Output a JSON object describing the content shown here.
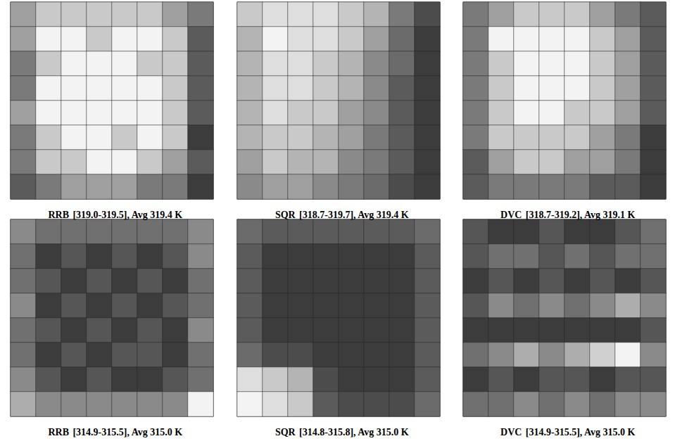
{
  "chart_data": [
    {
      "type": "heatmap",
      "title": "RRB",
      "subtitle": "[319.0-319.5], Avg 319.4 K",
      "color_range": [
        319.0,
        319.5
      ],
      "tick_labels": false,
      "cells": [
        [
          319.3,
          319.4,
          319.4,
          319.4,
          319.4,
          319.4,
          319.3,
          319.2
        ],
        [
          319.3,
          319.5,
          319.5,
          319.4,
          319.5,
          319.5,
          319.4,
          319.1
        ],
        [
          319.2,
          319.4,
          319.5,
          319.5,
          319.5,
          319.4,
          319.4,
          319.1
        ],
        [
          319.2,
          319.5,
          319.5,
          319.5,
          319.5,
          319.5,
          319.4,
          319.1
        ],
        [
          319.3,
          319.5,
          319.5,
          319.5,
          319.5,
          319.5,
          319.4,
          319.1
        ],
        [
          319.2,
          319.4,
          319.5,
          319.5,
          319.4,
          319.5,
          319.4,
          319.0
        ],
        [
          319.2,
          319.4,
          319.4,
          319.5,
          319.5,
          319.4,
          319.3,
          319.1
        ],
        [
          319.1,
          319.2,
          319.3,
          319.3,
          319.3,
          319.2,
          319.2,
          319.0
        ]
      ]
    },
    {
      "type": "heatmap",
      "title": "SQR",
      "subtitle": "[318.7-319.7], Avg 319.4 K",
      "color_range": [
        318.7,
        319.7
      ],
      "tick_labels": false,
      "cells": [
        [
          319.5,
          319.6,
          319.6,
          319.6,
          319.5,
          319.4,
          319.1,
          318.8
        ],
        [
          319.4,
          319.7,
          319.6,
          319.6,
          319.5,
          319.3,
          319.0,
          318.7
        ],
        [
          319.4,
          319.6,
          319.6,
          319.5,
          319.4,
          319.2,
          319.0,
          318.7
        ],
        [
          319.4,
          319.6,
          319.6,
          319.5,
          319.4,
          319.2,
          318.9,
          318.7
        ],
        [
          319.4,
          319.6,
          319.5,
          319.5,
          319.3,
          319.2,
          318.9,
          318.7
        ],
        [
          319.4,
          319.5,
          319.5,
          319.4,
          319.3,
          319.1,
          318.9,
          318.7
        ],
        [
          319.3,
          319.5,
          319.4,
          319.4,
          319.2,
          319.1,
          318.9,
          318.7
        ],
        [
          319.2,
          319.3,
          319.3,
          319.2,
          319.1,
          319.0,
          318.8,
          318.7
        ]
      ]
    },
    {
      "type": "heatmap",
      "title": "DVC",
      "subtitle": "[318.7-319.2], Avg 319.1 K",
      "color_range": [
        318.7,
        319.2
      ],
      "tick_labels": false,
      "cells": [
        [
          318.9,
          319.0,
          319.1,
          319.1,
          319.1,
          319.0,
          318.9,
          318.8
        ],
        [
          318.9,
          319.2,
          319.2,
          319.2,
          319.2,
          319.1,
          319.0,
          318.8
        ],
        [
          318.9,
          319.1,
          319.2,
          319.2,
          319.2,
          319.1,
          319.0,
          318.8
        ],
        [
          318.9,
          319.1,
          319.2,
          319.2,
          319.2,
          319.1,
          319.0,
          318.8
        ],
        [
          318.9,
          319.1,
          319.2,
          319.2,
          319.1,
          319.1,
          319.0,
          318.8
        ],
        [
          318.9,
          319.1,
          319.1,
          319.1,
          319.1,
          319.0,
          318.9,
          318.7
        ],
        [
          318.8,
          319.0,
          319.1,
          319.1,
          319.0,
          319.0,
          318.9,
          318.7
        ],
        [
          318.8,
          318.9,
          318.9,
          318.9,
          318.9,
          318.8,
          318.8,
          318.7
        ]
      ]
    },
    {
      "type": "heatmap",
      "title": "RRB",
      "subtitle": "[314.9-315.5], Avg 315.0 K",
      "color_range": [
        314.9,
        315.5
      ],
      "tick_labels": false,
      "cells": [
        [
          315.2,
          315.1,
          315.1,
          315.1,
          315.1,
          315.1,
          315.1,
          315.2
        ],
        [
          315.1,
          314.9,
          315.0,
          314.9,
          315.0,
          314.9,
          315.0,
          315.2
        ],
        [
          315.1,
          315.0,
          314.9,
          315.0,
          314.9,
          315.0,
          314.9,
          315.1
        ],
        [
          315.2,
          314.9,
          315.0,
          314.9,
          315.0,
          314.9,
          315.0,
          315.1
        ],
        [
          315.1,
          315.0,
          314.9,
          315.0,
          314.9,
          315.0,
          314.9,
          315.2
        ],
        [
          315.1,
          314.9,
          315.0,
          314.9,
          315.0,
          315.0,
          314.9,
          315.1
        ],
        [
          315.2,
          315.0,
          314.9,
          315.0,
          314.9,
          314.9,
          315.0,
          315.1
        ],
        [
          315.3,
          315.2,
          315.2,
          315.2,
          315.2,
          315.2,
          315.2,
          315.5
        ]
      ]
    },
    {
      "type": "heatmap",
      "title": "SQR",
      "subtitle": "[314.8-315.8], Avg 315.0 K",
      "color_range": [
        314.8,
        315.8
      ],
      "tick_labels": false,
      "cells": [
        [
          315.1,
          315.0,
          315.0,
          315.0,
          315.0,
          315.0,
          315.0,
          315.1
        ],
        [
          315.0,
          314.8,
          314.8,
          314.8,
          314.8,
          314.8,
          314.8,
          315.0
        ],
        [
          315.0,
          314.8,
          314.8,
          314.8,
          314.8,
          314.8,
          314.8,
          315.0
        ],
        [
          315.0,
          314.8,
          314.8,
          314.8,
          314.8,
          314.8,
          314.8,
          315.0
        ],
        [
          315.0,
          314.8,
          314.8,
          314.8,
          314.8,
          314.8,
          314.8,
          315.0
        ],
        [
          315.1,
          314.9,
          314.9,
          314.8,
          314.8,
          314.8,
          314.8,
          315.0
        ],
        [
          315.7,
          315.6,
          315.5,
          314.9,
          314.8,
          314.8,
          314.8,
          315.0
        ],
        [
          315.8,
          315.7,
          315.6,
          315.0,
          314.9,
          314.9,
          314.9,
          315.1
        ]
      ]
    },
    {
      "type": "heatmap",
      "title": "DVC",
      "subtitle": "[314.9-315.5], Avg 315.0 K",
      "color_range": [
        314.9,
        315.5
      ],
      "tick_labels": false,
      "cells": [
        [
          315.0,
          314.9,
          314.9,
          315.0,
          314.9,
          314.9,
          315.0,
          315.1
        ],
        [
          315.0,
          315.1,
          315.1,
          315.0,
          315.1,
          315.0,
          315.1,
          315.1
        ],
        [
          314.9,
          315.0,
          314.9,
          315.0,
          314.9,
          315.0,
          314.9,
          315.0
        ],
        [
          315.0,
          315.2,
          315.1,
          315.2,
          315.1,
          315.2,
          315.3,
          315.2
        ],
        [
          314.9,
          314.9,
          314.9,
          314.9,
          314.9,
          314.9,
          314.9,
          315.0
        ],
        [
          315.1,
          315.2,
          315.3,
          315.2,
          315.3,
          315.4,
          315.5,
          315.2
        ],
        [
          314.9,
          315.0,
          314.9,
          315.0,
          315.0,
          314.9,
          315.0,
          315.0
        ],
        [
          315.1,
          315.1,
          315.2,
          315.1,
          315.2,
          315.1,
          315.2,
          315.2
        ]
      ]
    }
  ]
}
